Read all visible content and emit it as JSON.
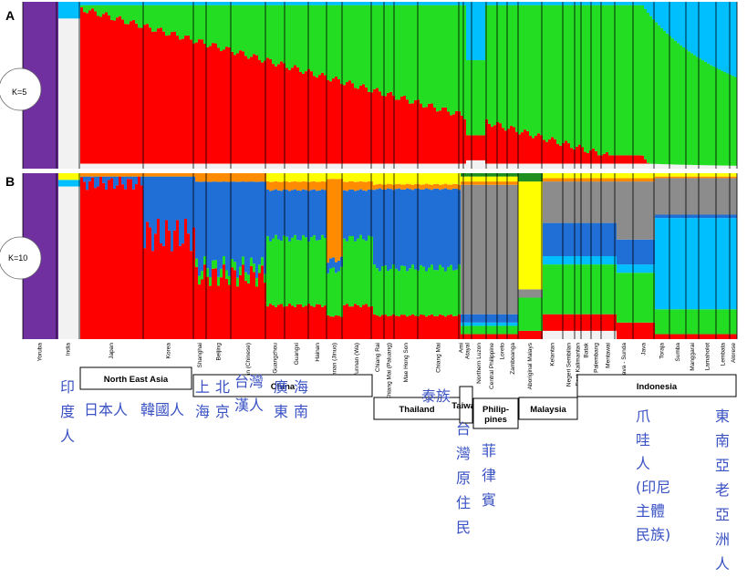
{
  "chart_data": {
    "type": "bar",
    "subtype": "stacked-admixture",
    "panels": [
      {
        "letter": "A",
        "k_label": "K=5"
      },
      {
        "letter": "B",
        "k_label": "K=10"
      }
    ],
    "populations": [
      "Yoruba",
      "India",
      "Japan",
      "Korea",
      "Shanghai",
      "Beijing",
      "Taiwan (Chinese)",
      "Guangzhou",
      "Guangxi",
      "Hainan",
      "Yunnan (Jinuo)",
      "Yunnan (Wa)",
      "Chiang Rai",
      "Chiang Mai (Paluang)",
      "Mae Hong Son",
      "Chiang Mai",
      "Ami",
      "Atayal",
      "Northern Luzon",
      "Central Philippine",
      "Loreto",
      "Zamboanga",
      "Aboriginal Malays",
      "Kelantan",
      "Negeri Sembilan",
      "East Kalimantan",
      "Batak",
      "Palembang",
      "Mentawai",
      "Java - Sunda",
      "Java",
      "Toraja",
      "Sumba",
      "Manggarai",
      "Lamaholot",
      "Lembata",
      "Alorese"
    ],
    "regions": [
      "North East Asia",
      "China",
      "Thailand",
      "Taiwan",
      "Philip-\npines",
      "Malaysia",
      "Indonesia"
    ],
    "annotations": [
      "印度人",
      "日本人",
      "韓國人",
      "上海",
      "北京",
      "台灣漢人",
      "廣東",
      "海南",
      "泰族",
      "台灣原住民",
      "菲律賓",
      "爪哇人(印尼主體民族)",
      "東南亞老亞洲人"
    ],
    "ancestry_colors": [
      "#7030a0",
      "#f2f2f2",
      "#ff0000",
      "#22dd22",
      "#00bfff",
      "#1f6fd6",
      "#8c8c8c",
      "#ff8c00",
      "#ffff00",
      "#1f8f1f"
    ]
  }
}
